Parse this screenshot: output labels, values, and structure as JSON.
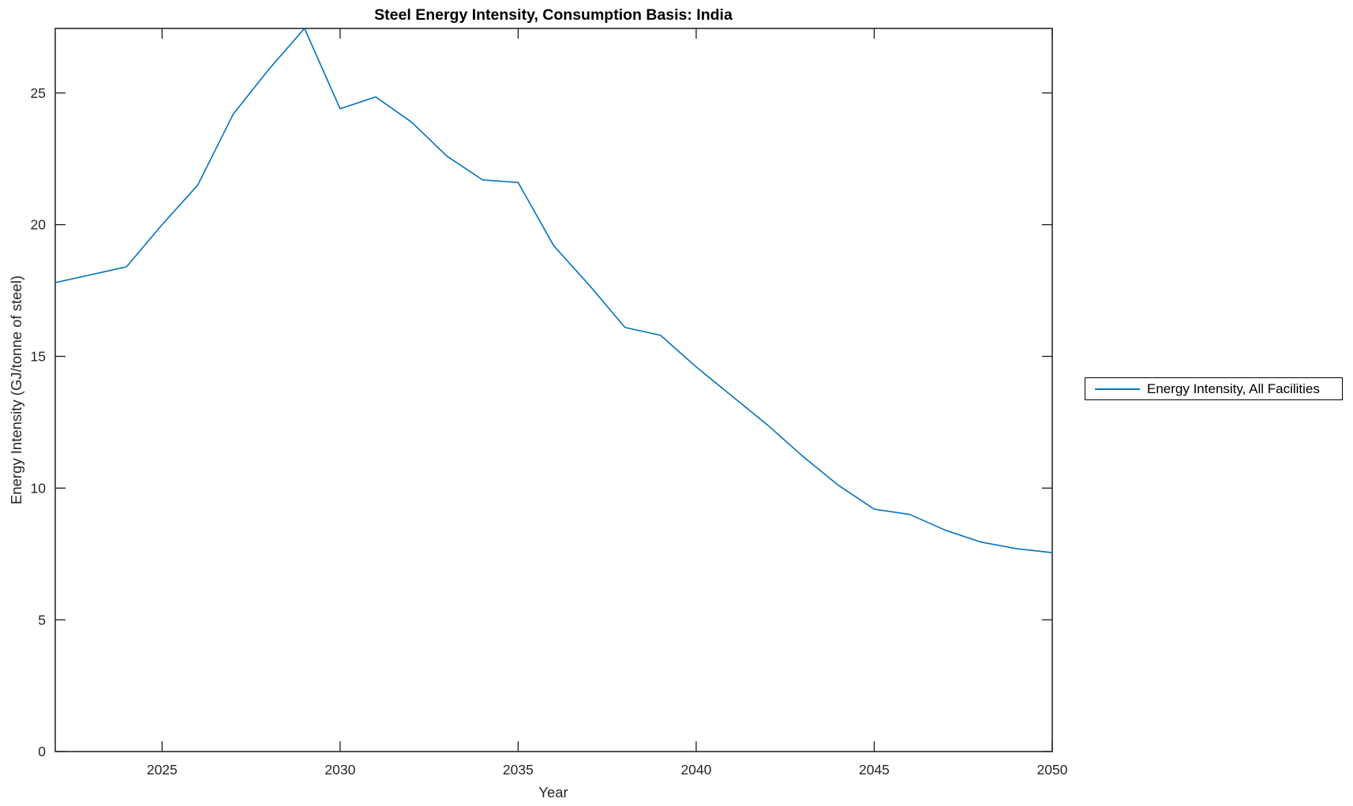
{
  "figure": {
    "title": "Steel Energy Intensity, Consumption Basis: India",
    "xlabel": "Year",
    "ylabel": "Energy Intensity (GJ/tonne of steel)"
  },
  "legend": {
    "entries": [
      {
        "label": "Energy Intensity, All Facilities",
        "color": "#0072BD"
      }
    ]
  },
  "colors": {
    "line": "#0072BD",
    "axis": "#1a1a1a",
    "tick_text": "#262626",
    "background": "#ffffff"
  },
  "chart_data": {
    "type": "line",
    "title": "Steel Energy Intensity, Consumption Basis: India",
    "xlabel": "Year",
    "ylabel": "Energy Intensity (GJ/tonne of steel)",
    "x": [
      2022,
      2023,
      2024,
      2025,
      2026,
      2027,
      2028,
      2029,
      2030,
      2031,
      2032,
      2033,
      2034,
      2035,
      2036,
      2037,
      2038,
      2039,
      2040,
      2041,
      2042,
      2043,
      2044,
      2045,
      2046,
      2047,
      2048,
      2049,
      2050
    ],
    "series": [
      {
        "name": "Energy Intensity, All Facilities",
        "values": [
          17.8,
          18.1,
          18.4,
          20.0,
          21.5,
          24.2,
          25.9,
          27.45,
          24.4,
          24.85,
          23.9,
          22.6,
          21.7,
          21.6,
          19.2,
          17.7,
          16.1,
          15.8,
          14.6,
          13.5,
          12.4,
          11.2,
          10.1,
          9.2,
          9.0,
          8.4,
          7.95,
          7.7,
          7.55
        ]
      }
    ],
    "xlim": [
      2022,
      2050
    ],
    "ylim": [
      0,
      27.45
    ],
    "x_ticks": [
      2025,
      2030,
      2035,
      2040,
      2045,
      2050
    ],
    "y_ticks": [
      0,
      5,
      10,
      15,
      20,
      25
    ],
    "grid": false,
    "legend_position": "right-outside"
  }
}
